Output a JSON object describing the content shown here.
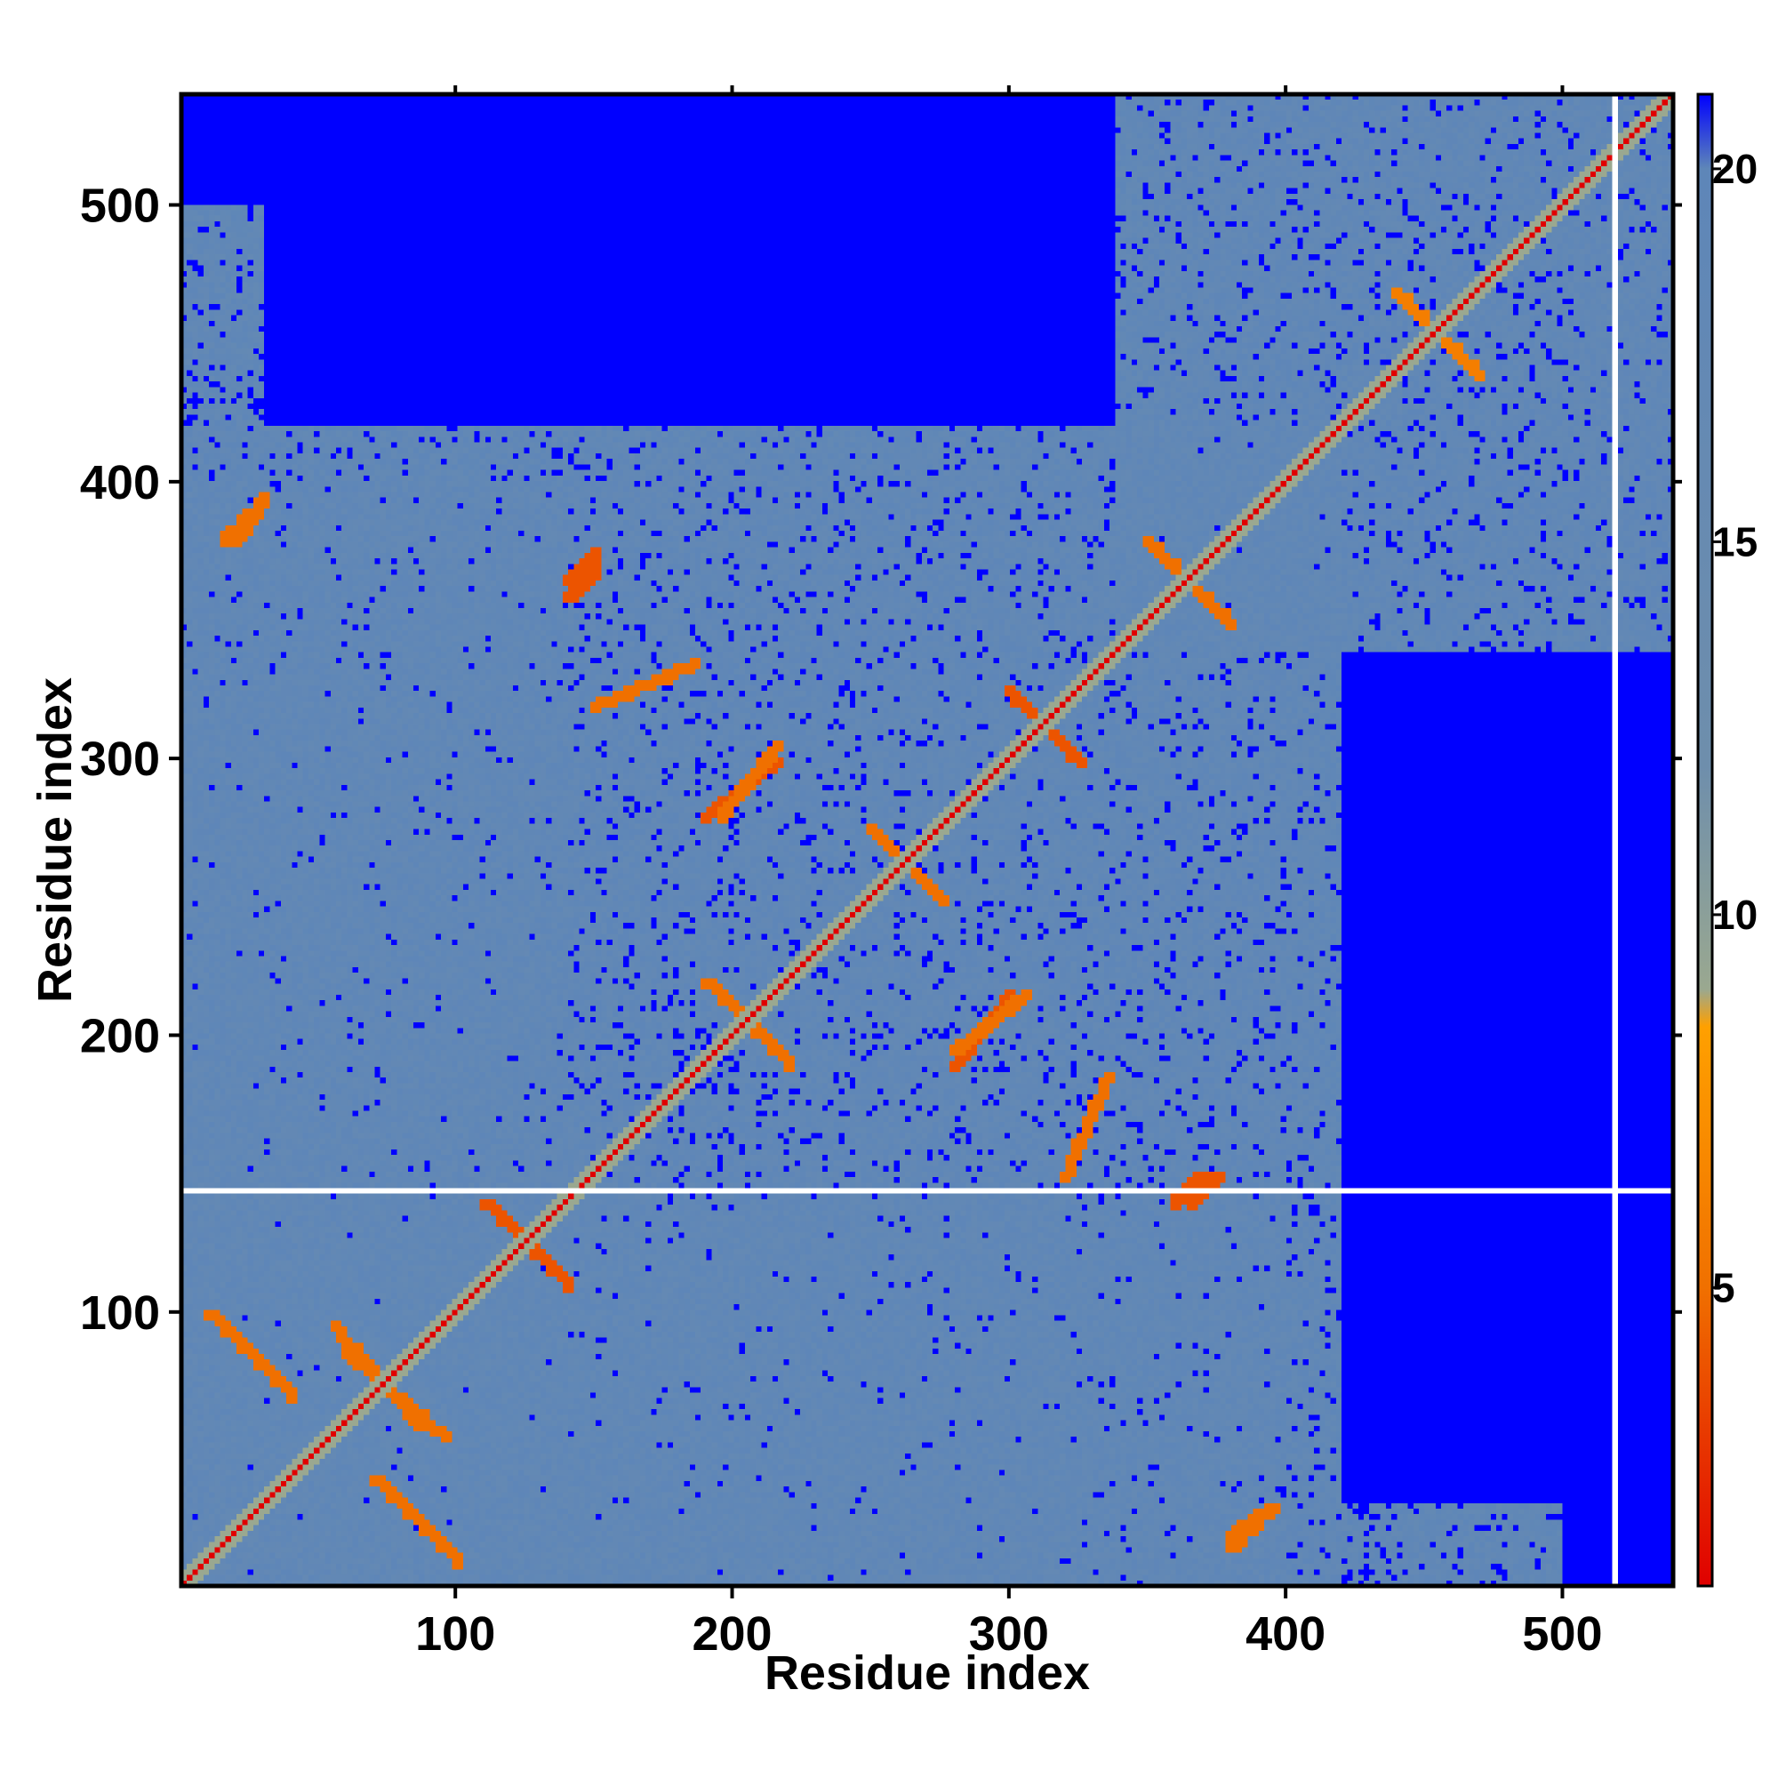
{
  "chart_data": {
    "type": "heatmap",
    "title": "",
    "xlabel": "Residue index",
    "ylabel": "Residue index",
    "xlim": [
      1,
      540
    ],
    "ylim": [
      1,
      540
    ],
    "x_ticks": [
      "100",
      "200",
      "300",
      "400",
      "500"
    ],
    "y_ticks": [
      "100",
      "200",
      "300",
      "400",
      "500"
    ],
    "tick_values": [
      100,
      200,
      300,
      400,
      500
    ],
    "matrix_size": 540,
    "gap_rows": [
      144
    ],
    "gap_cols": [
      520
    ],
    "colorbar": {
      "range": [
        1,
        21
      ],
      "tick_labels": [
        "5",
        "10",
        "15",
        "20"
      ],
      "tick_values": [
        5,
        10,
        15,
        20
      ],
      "colors": {
        "low": "#e00000",
        "mid_low": "#f07000",
        "mid": "#ffa000",
        "mid_high": "#9aa890",
        "high": "#5e86b8",
        "far": "#0000ff"
      },
      "stops": [
        {
          "v": 1,
          "c": "#e00000"
        },
        {
          "v": 5,
          "c": "#f07000"
        },
        {
          "v": 8.5,
          "c": "#ffa000"
        },
        {
          "v": 9,
          "c": "#9aa890"
        },
        {
          "v": 12,
          "c": "#6e8eac"
        },
        {
          "v": 20,
          "c": "#5e86b8"
        },
        {
          "v": 21,
          "c": "#0000ff"
        }
      ]
    },
    "regions": [
      {
        "x": [
          1,
          420
        ],
        "y": [
          1,
          420
        ],
        "level": 17
      },
      {
        "x": [
          1,
          400
        ],
        "y": [
          1,
          140
        ],
        "level": 17
      },
      {
        "x": [
          340,
          540
        ],
        "y": [
          340,
          540
        ],
        "level": 17
      },
      {
        "x": [
          440,
          500
        ],
        "y": [
          1,
          30
        ],
        "level": 17
      },
      {
        "x": [
          1,
          30
        ],
        "y": [
          420,
          500
        ],
        "level": 17
      },
      {
        "x": [
          90,
          210
        ],
        "y": [
          1,
          30
        ],
        "level": 17
      }
    ],
    "contacts": [
      {
        "x": [
          10,
          40
        ],
        "y": [
          100,
          70
        ],
        "level": 5
      },
      {
        "x": [
          60,
          95
        ],
        "y": [
          85,
          55
        ],
        "level": 5
      },
      {
        "x": [
          110,
          140
        ],
        "y": [
          140,
          110
        ],
        "level": 4
      },
      {
        "x": [
          190,
          220
        ],
        "y": [
          220,
          190
        ],
        "level": 5
      },
      {
        "x": [
          250,
          275
        ],
        "y": [
          275,
          250
        ],
        "level": 5
      },
      {
        "x": [
          300,
          325
        ],
        "y": [
          325,
          300
        ],
        "level": 4
      },
      {
        "x": [
          350,
          380
        ],
        "y": [
          380,
          350
        ],
        "level": 5
      },
      {
        "x": [
          440,
          470
        ],
        "y": [
          470,
          440
        ],
        "level": 6
      },
      {
        "x": [
          190,
          215
        ],
        "y": [
          280,
          300
        ],
        "level": 4
      },
      {
        "x": [
          140,
          150
        ],
        "y": [
          365,
          375
        ],
        "level": 4
      },
      {
        "x": [
          280,
          305
        ],
        "y": [
          195,
          215
        ],
        "level": 5
      },
      {
        "x": [
          360,
          370
        ],
        "y": [
          140,
          150
        ],
        "level": 4
      },
      {
        "x": [
          380,
          395
        ],
        "y": [
          20,
          30
        ],
        "level": 5
      },
      {
        "x": [
          15,
          30
        ],
        "y": [
          380,
          395
        ],
        "level": 5
      },
      {
        "x": [
          320,
          335
        ],
        "y": [
          150,
          185
        ],
        "level": 5
      }
    ]
  }
}
